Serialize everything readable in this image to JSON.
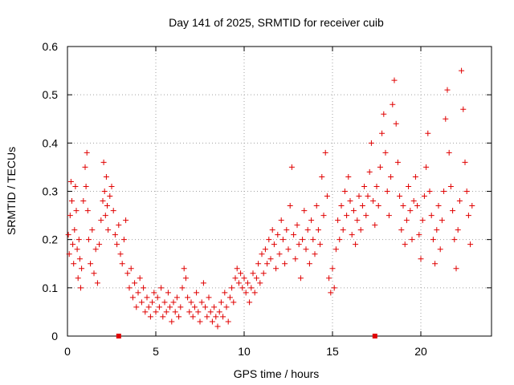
{
  "chart_data": {
    "type": "scatter",
    "title": "Day 141 of 2025, SRMTID for receiver cuib",
    "xlabel": "GPS time / hours",
    "ylabel": "SRMTID / TECUs",
    "xlim": [
      0,
      24
    ],
    "ylim": [
      0,
      0.6
    ],
    "x_ticks": [
      0,
      5,
      10,
      15,
      20
    ],
    "y_ticks": [
      0,
      0.1,
      0.2,
      0.3,
      0.4,
      0.5,
      0.6
    ],
    "x_tick_labels": [
      "0",
      "5",
      "10",
      "15",
      "20"
    ],
    "y_tick_labels": [
      "0",
      "0.1",
      "0.2",
      "0.3",
      "0.4",
      "0.5",
      "0.6"
    ],
    "grid": true,
    "marker": "+",
    "series_color": "#e00000",
    "axis_markers_x": [
      2.9,
      17.4
    ],
    "series": [
      {
        "name": "SRMTID",
        "points": [
          [
            0.05,
            0.21
          ],
          [
            0.1,
            0.17
          ],
          [
            0.15,
            0.25
          ],
          [
            0.2,
            0.32
          ],
          [
            0.25,
            0.28
          ],
          [
            0.3,
            0.19
          ],
          [
            0.35,
            0.15
          ],
          [
            0.4,
            0.22
          ],
          [
            0.45,
            0.31
          ],
          [
            0.5,
            0.26
          ],
          [
            0.55,
            0.18
          ],
          [
            0.6,
            0.12
          ],
          [
            0.65,
            0.2
          ],
          [
            0.7,
            0.16
          ],
          [
            0.75,
            0.1
          ],
          [
            0.8,
            0.14
          ],
          [
            0.9,
            0.28
          ],
          [
            1.0,
            0.35
          ],
          [
            1.05,
            0.31
          ],
          [
            1.1,
            0.38
          ],
          [
            1.15,
            0.26
          ],
          [
            1.2,
            0.2
          ],
          [
            1.3,
            0.15
          ],
          [
            1.4,
            0.22
          ],
          [
            1.5,
            0.13
          ],
          [
            1.6,
            0.18
          ],
          [
            1.7,
            0.11
          ],
          [
            1.8,
            0.19
          ],
          [
            1.9,
            0.24
          ],
          [
            2.0,
            0.28
          ],
          [
            2.05,
            0.36
          ],
          [
            2.1,
            0.3
          ],
          [
            2.15,
            0.25
          ],
          [
            2.2,
            0.33
          ],
          [
            2.25,
            0.27
          ],
          [
            2.3,
            0.22
          ],
          [
            2.4,
            0.29
          ],
          [
            2.5,
            0.31
          ],
          [
            2.6,
            0.26
          ],
          [
            2.7,
            0.21
          ],
          [
            2.8,
            0.19
          ],
          [
            2.9,
            0.23
          ],
          [
            3.0,
            0.17
          ],
          [
            3.1,
            0.15
          ],
          [
            3.2,
            0.2
          ],
          [
            3.3,
            0.24
          ],
          [
            3.4,
            0.13
          ],
          [
            3.5,
            0.1
          ],
          [
            3.6,
            0.14
          ],
          [
            3.7,
            0.08
          ],
          [
            3.8,
            0.11
          ],
          [
            3.9,
            0.06
          ],
          [
            4.0,
            0.09
          ],
          [
            4.1,
            0.12
          ],
          [
            4.2,
            0.07
          ],
          [
            4.3,
            0.1
          ],
          [
            4.4,
            0.05
          ],
          [
            4.5,
            0.08
          ],
          [
            4.6,
            0.06
          ],
          [
            4.7,
            0.04
          ],
          [
            4.8,
            0.07
          ],
          [
            4.9,
            0.09
          ],
          [
            5.0,
            0.05
          ],
          [
            5.1,
            0.08
          ],
          [
            5.2,
            0.06
          ],
          [
            5.3,
            0.1
          ],
          [
            5.4,
            0.04
          ],
          [
            5.5,
            0.07
          ],
          [
            5.6,
            0.05
          ],
          [
            5.7,
            0.09
          ],
          [
            5.8,
            0.06
          ],
          [
            5.9,
            0.03
          ],
          [
            6.0,
            0.07
          ],
          [
            6.1,
            0.05
          ],
          [
            6.2,
            0.08
          ],
          [
            6.3,
            0.04
          ],
          [
            6.4,
            0.06
          ],
          [
            6.5,
            0.1
          ],
          [
            6.6,
            0.14
          ],
          [
            6.7,
            0.12
          ],
          [
            6.8,
            0.08
          ],
          [
            6.9,
            0.05
          ],
          [
            7.0,
            0.07
          ],
          [
            7.1,
            0.04
          ],
          [
            7.2,
            0.06
          ],
          [
            7.3,
            0.09
          ],
          [
            7.4,
            0.05
          ],
          [
            7.5,
            0.03
          ],
          [
            7.6,
            0.07
          ],
          [
            7.7,
            0.11
          ],
          [
            7.8,
            0.06
          ],
          [
            7.9,
            0.04
          ],
          [
            8.0,
            0.08
          ],
          [
            8.1,
            0.05
          ],
          [
            8.2,
            0.03
          ],
          [
            8.3,
            0.06
          ],
          [
            8.4,
            0.04
          ],
          [
            8.5,
            0.02
          ],
          [
            8.6,
            0.05
          ],
          [
            8.7,
            0.07
          ],
          [
            8.8,
            0.04
          ],
          [
            8.9,
            0.09
          ],
          [
            9.0,
            0.06
          ],
          [
            9.1,
            0.03
          ],
          [
            9.2,
            0.08
          ],
          [
            9.3,
            0.1
          ],
          [
            9.4,
            0.07
          ],
          [
            9.5,
            0.12
          ],
          [
            9.6,
            0.14
          ],
          [
            9.7,
            0.11
          ],
          [
            9.8,
            0.13
          ],
          [
            9.9,
            0.1
          ],
          [
            10.0,
            0.12
          ],
          [
            10.1,
            0.09
          ],
          [
            10.2,
            0.11
          ],
          [
            10.3,
            0.07
          ],
          [
            10.4,
            0.1
          ],
          [
            10.5,
            0.13
          ],
          [
            10.6,
            0.09
          ],
          [
            10.7,
            0.12
          ],
          [
            10.8,
            0.15
          ],
          [
            10.9,
            0.11
          ],
          [
            11.0,
            0.17
          ],
          [
            11.1,
            0.13
          ],
          [
            11.2,
            0.18
          ],
          [
            11.3,
            0.15
          ],
          [
            11.4,
            0.2
          ],
          [
            11.5,
            0.16
          ],
          [
            11.6,
            0.22
          ],
          [
            11.7,
            0.19
          ],
          [
            11.8,
            0.14
          ],
          [
            11.9,
            0.21
          ],
          [
            12.0,
            0.17
          ],
          [
            12.1,
            0.24
          ],
          [
            12.2,
            0.2
          ],
          [
            12.3,
            0.15
          ],
          [
            12.4,
            0.22
          ],
          [
            12.5,
            0.18
          ],
          [
            12.6,
            0.27
          ],
          [
            12.7,
            0.35
          ],
          [
            12.8,
            0.21
          ],
          [
            12.9,
            0.16
          ],
          [
            13.0,
            0.23
          ],
          [
            13.1,
            0.19
          ],
          [
            13.2,
            0.12
          ],
          [
            13.3,
            0.2
          ],
          [
            13.4,
            0.26
          ],
          [
            13.5,
            0.18
          ],
          [
            13.6,
            0.22
          ],
          [
            13.7,
            0.15
          ],
          [
            13.8,
            0.24
          ],
          [
            13.9,
            0.2
          ],
          [
            14.0,
            0.17
          ],
          [
            14.1,
            0.27
          ],
          [
            14.2,
            0.22
          ],
          [
            14.3,
            0.19
          ],
          [
            14.4,
            0.33
          ],
          [
            14.5,
            0.25
          ],
          [
            14.6,
            0.38
          ],
          [
            14.7,
            0.29
          ],
          [
            14.8,
            0.12
          ],
          [
            14.9,
            0.09
          ],
          [
            15.0,
            0.14
          ],
          [
            15.1,
            0.1
          ],
          [
            15.2,
            0.18
          ],
          [
            15.3,
            0.24
          ],
          [
            15.4,
            0.2
          ],
          [
            15.5,
            0.27
          ],
          [
            15.6,
            0.22
          ],
          [
            15.7,
            0.3
          ],
          [
            15.8,
            0.25
          ],
          [
            15.9,
            0.33
          ],
          [
            16.0,
            0.28
          ],
          [
            16.1,
            0.21
          ],
          [
            16.2,
            0.26
          ],
          [
            16.3,
            0.19
          ],
          [
            16.4,
            0.24
          ],
          [
            16.5,
            0.29
          ],
          [
            16.6,
            0.22
          ],
          [
            16.7,
            0.27
          ],
          [
            16.8,
            0.31
          ],
          [
            16.9,
            0.25
          ],
          [
            17.0,
            0.29
          ],
          [
            17.1,
            0.34
          ],
          [
            17.2,
            0.4
          ],
          [
            17.3,
            0.28
          ],
          [
            17.4,
            0.23
          ],
          [
            17.5,
            0.31
          ],
          [
            17.6,
            0.27
          ],
          [
            17.7,
            0.35
          ],
          [
            17.8,
            0.42
          ],
          [
            17.9,
            0.46
          ],
          [
            18.0,
            0.38
          ],
          [
            18.1,
            0.3
          ],
          [
            18.2,
            0.25
          ],
          [
            18.3,
            0.33
          ],
          [
            18.4,
            0.48
          ],
          [
            18.5,
            0.53
          ],
          [
            18.6,
            0.44
          ],
          [
            18.7,
            0.36
          ],
          [
            18.8,
            0.29
          ],
          [
            18.9,
            0.22
          ],
          [
            19.0,
            0.27
          ],
          [
            19.1,
            0.19
          ],
          [
            19.2,
            0.24
          ],
          [
            19.3,
            0.31
          ],
          [
            19.4,
            0.26
          ],
          [
            19.5,
            0.2
          ],
          [
            19.6,
            0.28
          ],
          [
            19.7,
            0.33
          ],
          [
            19.8,
            0.27
          ],
          [
            19.9,
            0.21
          ],
          [
            20.0,
            0.16
          ],
          [
            20.1,
            0.24
          ],
          [
            20.2,
            0.29
          ],
          [
            20.3,
            0.35
          ],
          [
            20.4,
            0.42
          ],
          [
            20.5,
            0.3
          ],
          [
            20.6,
            0.25
          ],
          [
            20.7,
            0.2
          ],
          [
            20.8,
            0.15
          ],
          [
            20.9,
            0.22
          ],
          [
            21.0,
            0.27
          ],
          [
            21.1,
            0.18
          ],
          [
            21.2,
            0.24
          ],
          [
            21.3,
            0.3
          ],
          [
            21.4,
            0.45
          ],
          [
            21.5,
            0.51
          ],
          [
            21.6,
            0.38
          ],
          [
            21.7,
            0.31
          ],
          [
            21.8,
            0.26
          ],
          [
            21.9,
            0.2
          ],
          [
            22.0,
            0.14
          ],
          [
            22.1,
            0.22
          ],
          [
            22.2,
            0.28
          ],
          [
            22.3,
            0.55
          ],
          [
            22.4,
            0.47
          ],
          [
            22.5,
            0.36
          ],
          [
            22.6,
            0.3
          ],
          [
            22.7,
            0.25
          ],
          [
            22.8,
            0.19
          ],
          [
            22.9,
            0.27
          ]
        ]
      }
    ]
  }
}
